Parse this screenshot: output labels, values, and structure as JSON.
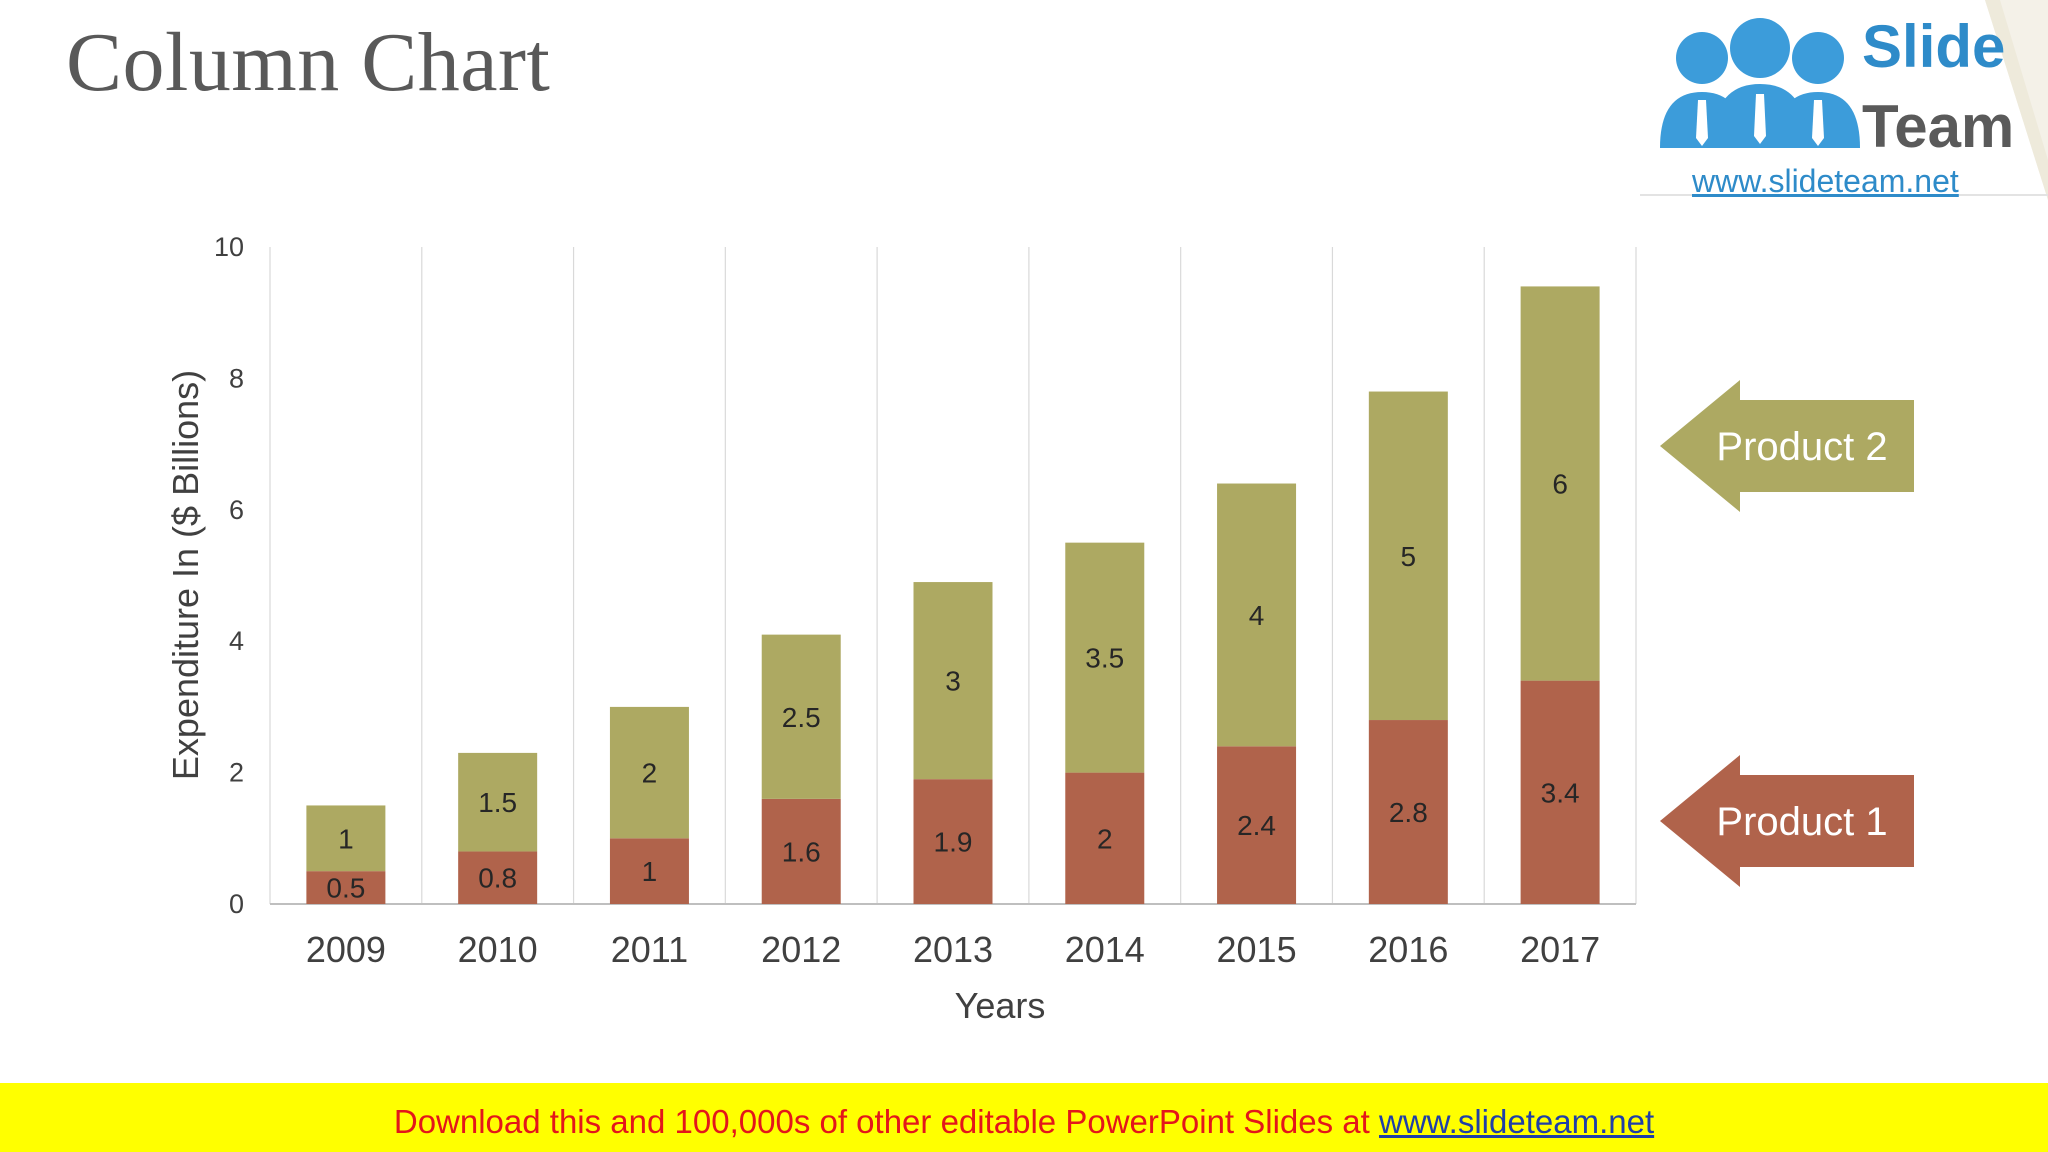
{
  "slide": {
    "title": "Column Chart",
    "footer_text": "Download this and 100,000s of other editable PowerPoint Slides at ",
    "footer_link": "www.slideteam.net"
  },
  "logo": {
    "word1": "Slide",
    "word2": "Team",
    "url": "www.slideteam.net"
  },
  "colors": {
    "product1": "#B0634B",
    "product2": "#ADA962",
    "gridline": "#D9D9D9",
    "axis_text": "#404040",
    "title": "#595959",
    "footer_bg": "#FFFF00",
    "footer_text": "#E3161B",
    "link": "#1F3FA8",
    "logo_blue": "#2E8BC9"
  },
  "chart_data": {
    "type": "bar",
    "stacked": true,
    "title": "",
    "xlabel": "Years",
    "ylabel": "Expenditure In ($ Billions)",
    "ylim": [
      0,
      10
    ],
    "yticks": [
      0,
      2,
      4,
      6,
      8,
      10
    ],
    "categories": [
      "2009",
      "2010",
      "2011",
      "2012",
      "2013",
      "2014",
      "2015",
      "2016",
      "2017"
    ],
    "series": [
      {
        "name": "Product 1",
        "values": [
          0.5,
          0.8,
          1,
          1.6,
          1.9,
          2,
          2.4,
          2.8,
          3.4
        ]
      },
      {
        "name": "Product 2",
        "values": [
          1,
          1.5,
          2,
          2.5,
          3,
          3.5,
          4,
          5,
          6
        ]
      }
    ],
    "legend": "right, arrow callouts"
  }
}
